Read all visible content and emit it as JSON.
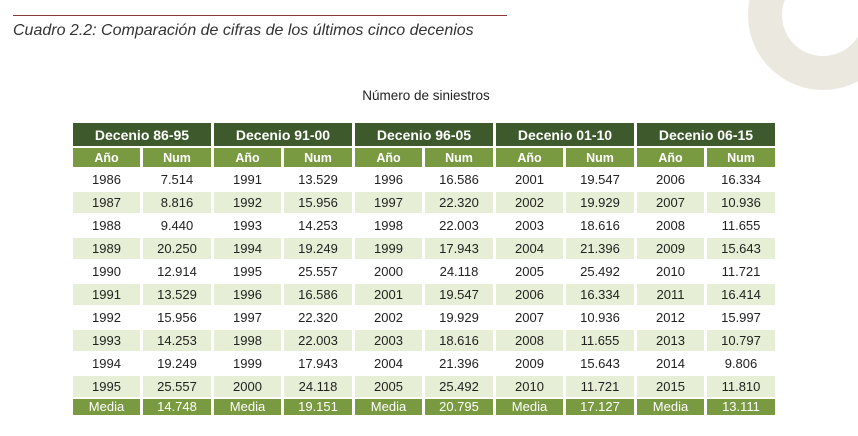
{
  "caption": "Cuadro 2.2: Comparación de cifras de los últimos cinco decenios",
  "subtitle": "Número de siniestros",
  "column_labels": {
    "year": "Año",
    "num": "Num"
  },
  "media_label": "Media",
  "decades": [
    {
      "label": "Decenio 86-95",
      "years": [
        "1986",
        "1987",
        "1988",
        "1989",
        "1990",
        "1991",
        "1992",
        "1993",
        "1994",
        "1995"
      ],
      "nums": [
        "7.514",
        "8.816",
        "9.440",
        "20.250",
        "12.914",
        "13.529",
        "15.956",
        "14.253",
        "19.249",
        "25.557"
      ],
      "media": "14.748"
    },
    {
      "label": "Decenio 91-00",
      "years": [
        "1991",
        "1992",
        "1993",
        "1994",
        "1995",
        "1996",
        "1997",
        "1998",
        "1999",
        "2000"
      ],
      "nums": [
        "13.529",
        "15.956",
        "14.253",
        "19.249",
        "25.557",
        "16.586",
        "22.320",
        "22.003",
        "17.943",
        "24.118"
      ],
      "media": "19.151"
    },
    {
      "label": "Decenio 96-05",
      "years": [
        "1996",
        "1997",
        "1998",
        "1999",
        "2000",
        "2001",
        "2002",
        "2003",
        "2004",
        "2005"
      ],
      "nums": [
        "16.586",
        "22.320",
        "22.003",
        "17.943",
        "24.118",
        "19.547",
        "19.929",
        "18.616",
        "21.396",
        "25.492"
      ],
      "media": "20.795"
    },
    {
      "label": "Decenio 01-10",
      "years": [
        "2001",
        "2002",
        "2003",
        "2004",
        "2005",
        "2006",
        "2007",
        "2008",
        "2009",
        "2010"
      ],
      "nums": [
        "19.547",
        "19.929",
        "18.616",
        "21.396",
        "25.492",
        "16.334",
        "10.936",
        "11.655",
        "15.643",
        "11.721"
      ],
      "media": "17.127"
    },
    {
      "label": "Decenio 06-15",
      "years": [
        "2006",
        "2007",
        "2008",
        "2009",
        "2010",
        "2011",
        "2012",
        "2013",
        "2014",
        "2015"
      ],
      "nums": [
        "16.334",
        "10.936",
        "11.655",
        "15.643",
        "11.721",
        "16.414",
        "15.997",
        "10.797",
        "9.806",
        "11.810"
      ],
      "media": "13.111"
    }
  ],
  "colors": {
    "header_dark": "#3e5a2c",
    "header_light": "#7a9a42",
    "row_alt": "#e6efd6",
    "rule": "#8b3a3a"
  }
}
